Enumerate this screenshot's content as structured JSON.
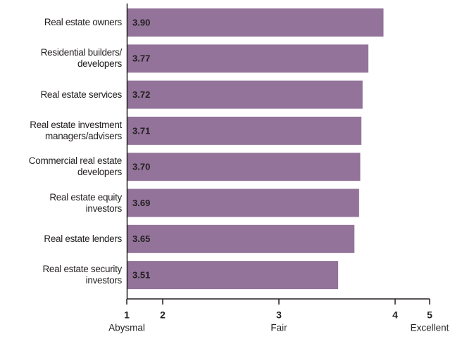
{
  "chart_data": {
    "type": "barh",
    "categories": [
      "Real estate owners",
      "Residential builders/\ndevelopers",
      "Real estate services",
      "Real estate investment\nmanagers/advisers",
      "Commercial real estate\ndevelopers",
      "Real estate equity\ninvestors",
      "Real estate lenders",
      "Real estate security\ninvestors"
    ],
    "values": [
      3.9,
      3.77,
      3.72,
      3.71,
      3.7,
      3.69,
      3.65,
      3.51
    ],
    "value_labels": [
      "3.90",
      "3.77",
      "3.72",
      "3.71",
      "3.70",
      "3.69",
      "3.65",
      "3.51"
    ],
    "color": "#93739a",
    "xlim": [
      1,
      5
    ],
    "xticks": [
      1,
      2,
      3,
      4,
      5
    ],
    "scale_labels": [
      {
        "value": 1,
        "label": "Abysmal"
      },
      {
        "value": 3,
        "label": "Fair"
      },
      {
        "value": 5,
        "label": "Excellent"
      }
    ]
  }
}
